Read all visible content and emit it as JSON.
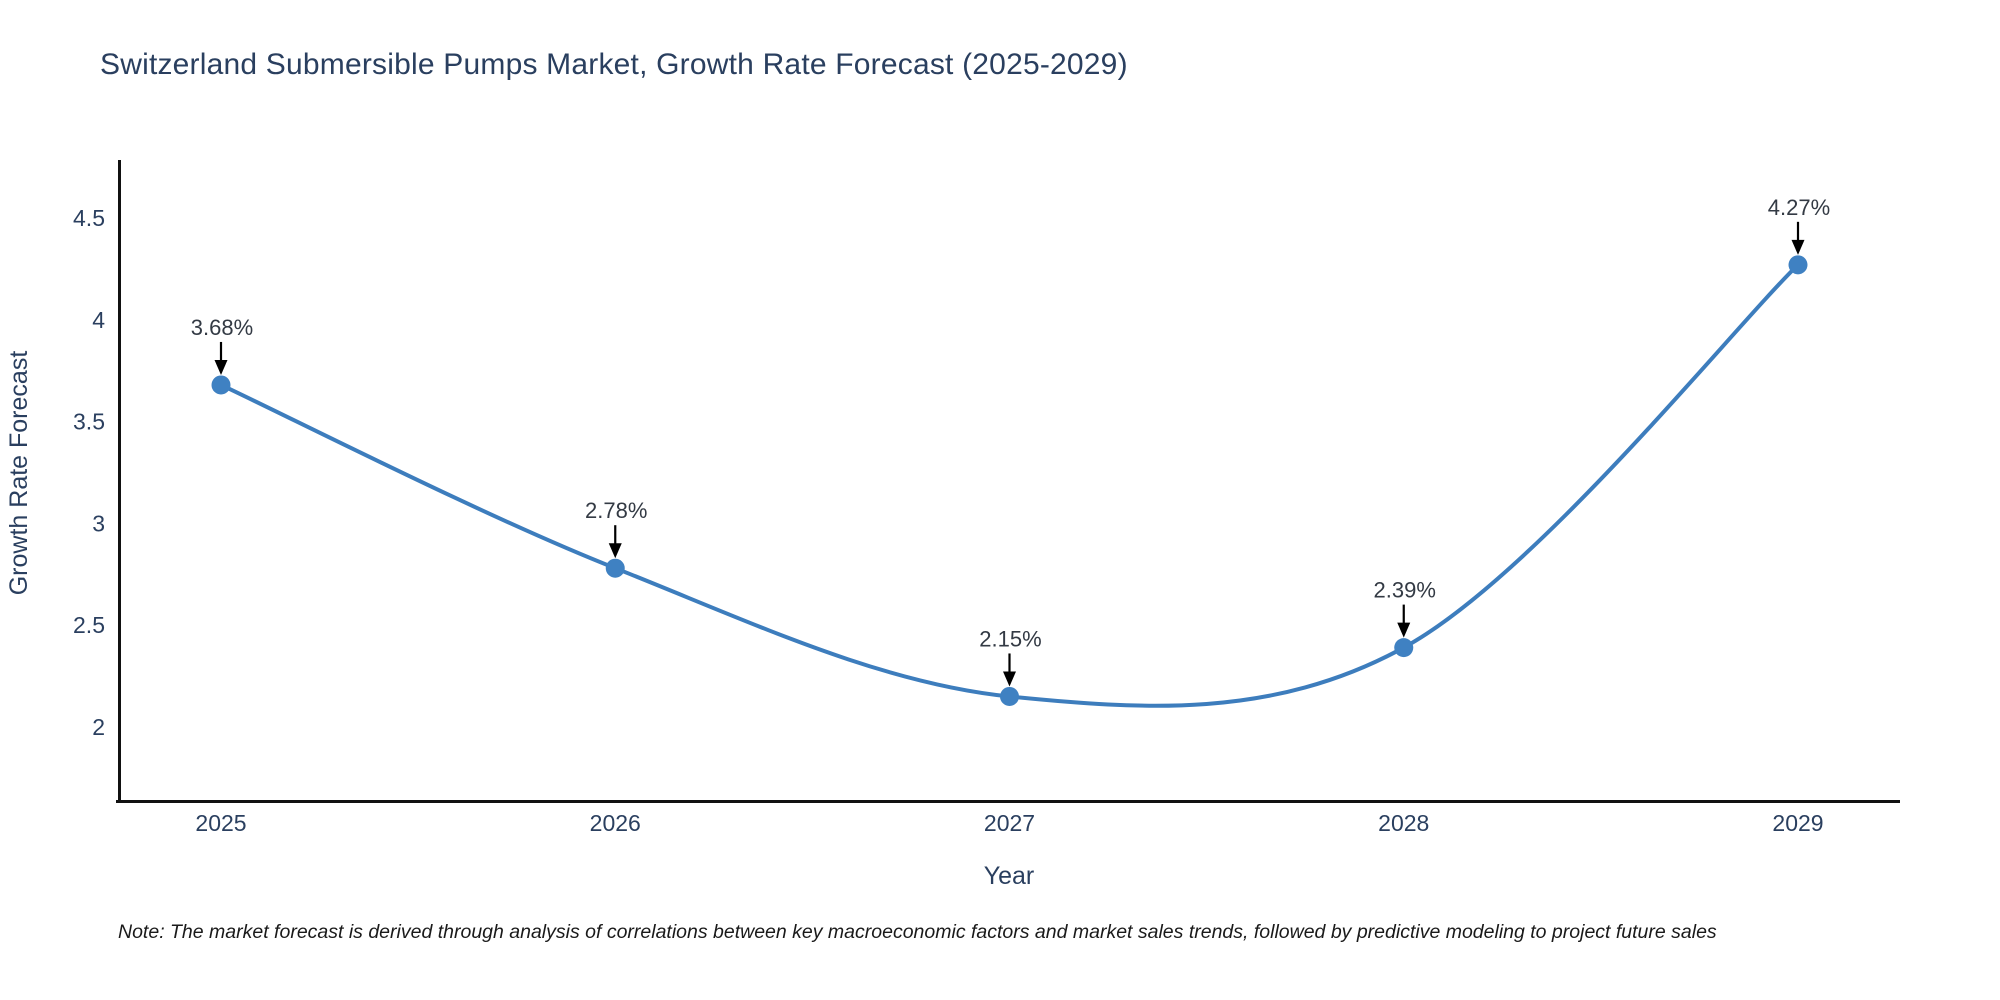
{
  "title": "Switzerland Submersible Pumps Market, Growth Rate Forecast (2025-2029)",
  "note": "Note: The market forecast is derived through analysis of correlations between key macroeconomic factors and market sales trends, followed by predictive modeling to project future sales",
  "chart_data": {
    "type": "line",
    "title": "Switzerland Submersible Pumps Market, Growth Rate Forecast (2025-2029)",
    "x": [
      "2025",
      "2026",
      "2027",
      "2028",
      "2029"
    ],
    "values": [
      3.68,
      2.78,
      2.15,
      2.39,
      4.27
    ],
    "point_labels": [
      "3.68%",
      "2.78%",
      "2.15%",
      "2.39%",
      "4.27%"
    ],
    "xlabel": "Year",
    "ylabel": "Growth Rate Forecast",
    "ytick_values": [
      2,
      2.5,
      3,
      3.5,
      4,
      4.5
    ],
    "ytick_labels": [
      "2",
      "2.5",
      "3",
      "3.5",
      "4",
      "4.5"
    ],
    "ylim": [
      1.64,
      4.78
    ],
    "line_shape": "spline",
    "grid": false,
    "legend_position": "none",
    "annotation_style": "value label with down arrow to point",
    "colors": {
      "line": "#3d7dbd",
      "marker": "#3f81c2",
      "axis": "#111111",
      "tick_text": "#2a3f5f",
      "annotation_text": "#333a44",
      "arrow": "#000000",
      "title_text": "#2a3f5f",
      "background": "#ffffff"
    }
  }
}
